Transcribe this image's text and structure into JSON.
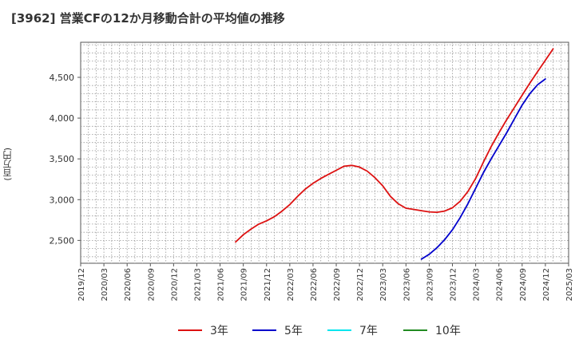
{
  "chart_data": {
    "type": "line",
    "title": "[3962]  営業CFの12か月移動合計の平均値の推移",
    "xlabel": "",
    "ylabel": "(百万円)",
    "ylim": [
      2220,
      4930
    ],
    "yticks": [
      2500,
      3000,
      3500,
      4000,
      4500
    ],
    "ytick_labels": [
      "2,500",
      "3,000",
      "3,500",
      "4,000",
      "4,500"
    ],
    "xlim": [
      "2019-12",
      "2025-03"
    ],
    "xtick_labels": [
      "2019/12",
      "2020/03",
      "2020/06",
      "2020/09",
      "2020/12",
      "2021/03",
      "2021/06",
      "2021/09",
      "2021/12",
      "2022/03",
      "2022/06",
      "2022/09",
      "2022/12",
      "2023/03",
      "2023/06",
      "2023/09",
      "2023/12",
      "2024/03",
      "2024/06",
      "2024/09",
      "2024/12",
      "2025/03"
    ],
    "grid": true,
    "legend_position": "bottom",
    "series": [
      {
        "name": "3年",
        "color": "#dd1111",
        "points": [
          [
            "2021-08",
            2480
          ],
          [
            "2021-09",
            2570
          ],
          [
            "2021-10",
            2640
          ],
          [
            "2021-11",
            2700
          ],
          [
            "2021-12",
            2740
          ],
          [
            "2022-01",
            2790
          ],
          [
            "2022-02",
            2860
          ],
          [
            "2022-03",
            2940
          ],
          [
            "2022-04",
            3040
          ],
          [
            "2022-05",
            3130
          ],
          [
            "2022-06",
            3200
          ],
          [
            "2022-07",
            3260
          ],
          [
            "2022-08",
            3310
          ],
          [
            "2022-09",
            3360
          ],
          [
            "2022-10",
            3410
          ],
          [
            "2022-11",
            3420
          ],
          [
            "2022-12",
            3400
          ],
          [
            "2023-01",
            3350
          ],
          [
            "2023-02",
            3270
          ],
          [
            "2023-03",
            3170
          ],
          [
            "2023-04",
            3040
          ],
          [
            "2023-05",
            2950
          ],
          [
            "2023-06",
            2895
          ],
          [
            "2023-07",
            2880
          ],
          [
            "2023-08",
            2865
          ],
          [
            "2023-09",
            2850
          ],
          [
            "2023-10",
            2845
          ],
          [
            "2023-11",
            2860
          ],
          [
            "2023-12",
            2900
          ],
          [
            "2024-01",
            2980
          ],
          [
            "2024-02",
            3100
          ],
          [
            "2024-03",
            3260
          ],
          [
            "2024-04",
            3460
          ],
          [
            "2024-05",
            3650
          ],
          [
            "2024-06",
            3820
          ],
          [
            "2024-07",
            3980
          ],
          [
            "2024-08",
            4130
          ],
          [
            "2024-09",
            4280
          ],
          [
            "2024-10",
            4430
          ],
          [
            "2024-11",
            4570
          ],
          [
            "2024-12",
            4710
          ],
          [
            "2025-01",
            4850
          ]
        ]
      },
      {
        "name": "5年",
        "color": "#0000cc",
        "points": [
          [
            "2023-08",
            2270
          ],
          [
            "2023-09",
            2330
          ],
          [
            "2023-10",
            2410
          ],
          [
            "2023-11",
            2510
          ],
          [
            "2023-12",
            2630
          ],
          [
            "2024-01",
            2780
          ],
          [
            "2024-02",
            2950
          ],
          [
            "2024-03",
            3140
          ],
          [
            "2024-04",
            3330
          ],
          [
            "2024-05",
            3500
          ],
          [
            "2024-06",
            3660
          ],
          [
            "2024-07",
            3820
          ],
          [
            "2024-08",
            3990
          ],
          [
            "2024-09",
            4160
          ],
          [
            "2024-10",
            4300
          ],
          [
            "2024-11",
            4410
          ],
          [
            "2024-12",
            4480
          ]
        ]
      },
      {
        "name": "7年",
        "color": "#00e5ee",
        "points": []
      },
      {
        "name": "10年",
        "color": "#228b22",
        "points": []
      }
    ]
  }
}
